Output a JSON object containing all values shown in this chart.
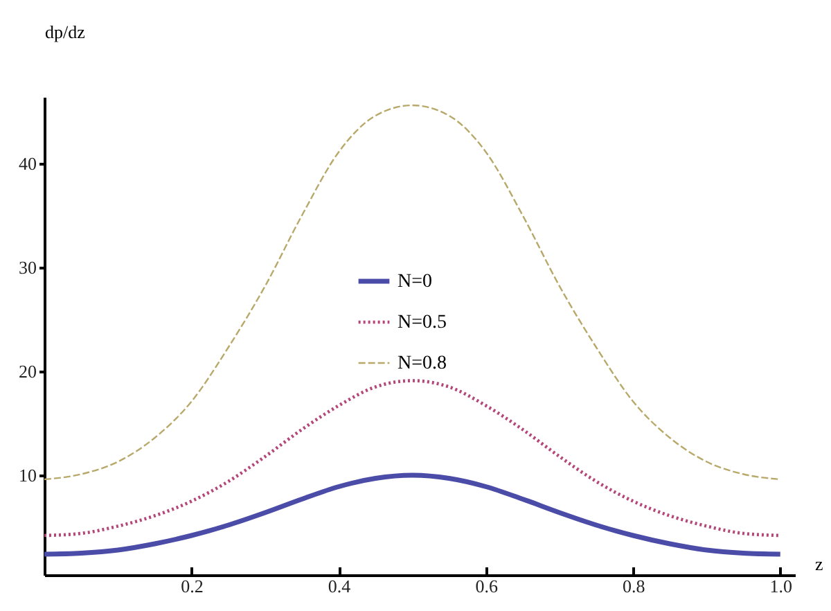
{
  "chart_data": {
    "type": "line",
    "xlabel": "z",
    "ylabel": "dp/dz",
    "x": [
      0,
      0.05,
      0.1,
      0.15,
      0.2,
      0.25,
      0.3,
      0.35,
      0.4,
      0.45,
      0.5,
      0.55,
      0.6,
      0.65,
      0.7,
      0.75,
      0.8,
      0.85,
      0.9,
      0.95,
      1
    ],
    "series": [
      {
        "name": "N=0",
        "color": "#4b4ba8",
        "line_style": "solid",
        "values": [
          2.4,
          2.5,
          2.8,
          3.4,
          4.2,
          5.2,
          6.4,
          7.7,
          8.9,
          9.7,
          10,
          9.7,
          8.9,
          7.7,
          6.4,
          5.2,
          4.2,
          3.4,
          2.8,
          2.5,
          2.4
        ]
      },
      {
        "name": "N=0.5",
        "color": "#b4467a",
        "line_style": "dotted",
        "values": [
          4.2,
          4.4,
          5.1,
          6.1,
          7.5,
          9.4,
          11.8,
          14.4,
          16.7,
          18.5,
          19.1,
          18.5,
          16.7,
          14.4,
          11.8,
          9.4,
          7.5,
          6.1,
          5.1,
          4.4,
          4.2
        ]
      },
      {
        "name": "N=0.8",
        "color": "#b8a96a",
        "line_style": "dashed",
        "values": [
          9.6,
          10.1,
          11.3,
          13.6,
          17.1,
          22.3,
          28.2,
          35,
          41.1,
          44.6,
          45.6,
          44.6,
          41.1,
          35,
          28.2,
          22.3,
          17.1,
          13.6,
          11.3,
          10.1,
          9.6
        ]
      }
    ],
    "xlim": [
      0,
      1.02
    ],
    "xticks": [
      0.2,
      0.4,
      0.6,
      0.8,
      {
        "value": 1,
        "label": "1.0"
      }
    ],
    "ylim": [
      0.4,
      46.4
    ],
    "yticks": [
      10,
      20,
      30,
      40
    ],
    "legend": "top",
    "grid": false
  }
}
